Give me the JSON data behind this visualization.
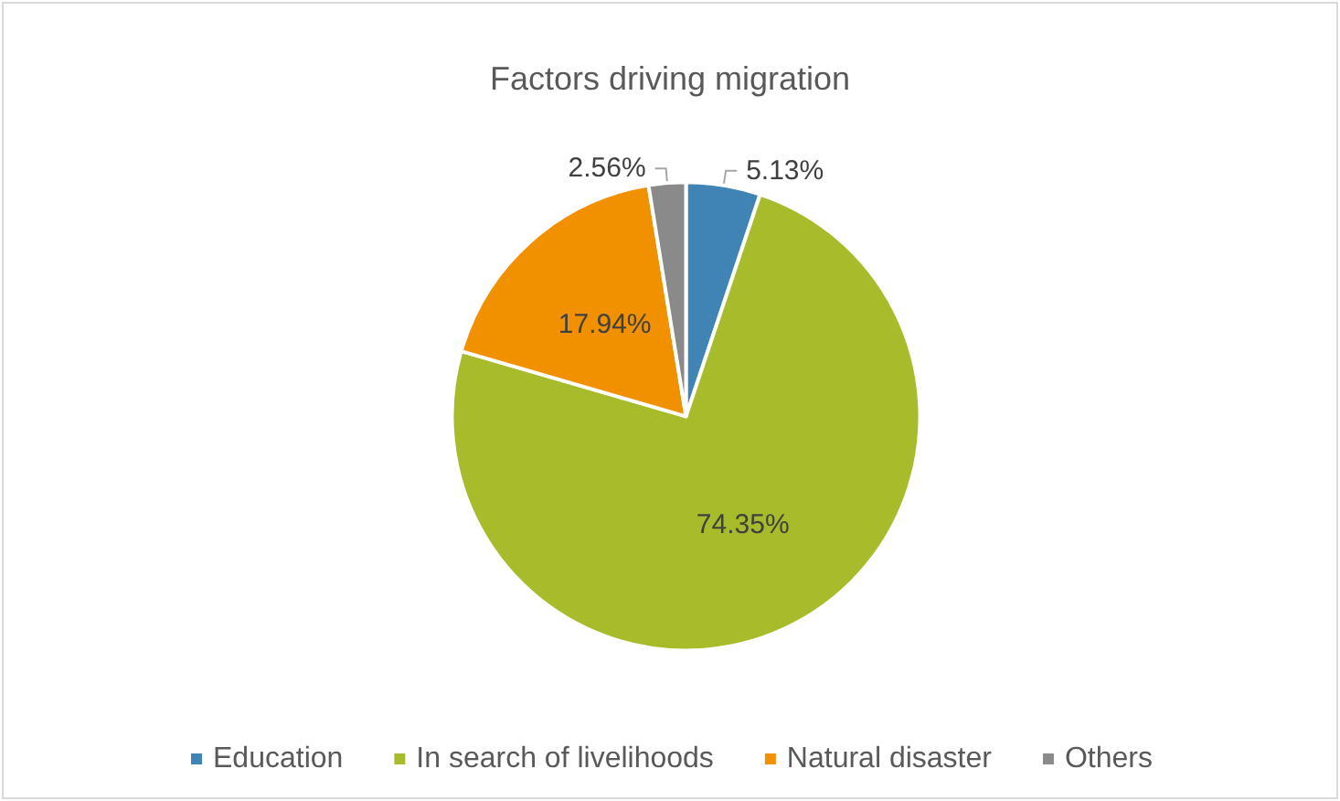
{
  "chart_data": {
    "type": "pie",
    "title": "Factors driving migration",
    "categories": [
      "Education",
      "In search of livelihoods",
      "Natural disaster",
      "Others"
    ],
    "values": [
      5.13,
      74.35,
      17.94,
      2.56
    ],
    "value_labels": [
      "5.13%",
      "74.35%",
      "17.94%",
      "2.56%"
    ],
    "colors": [
      "#3f84b4",
      "#a8bb2a",
      "#f29100",
      "#8a8a8a"
    ],
    "legend": "bottom"
  }
}
